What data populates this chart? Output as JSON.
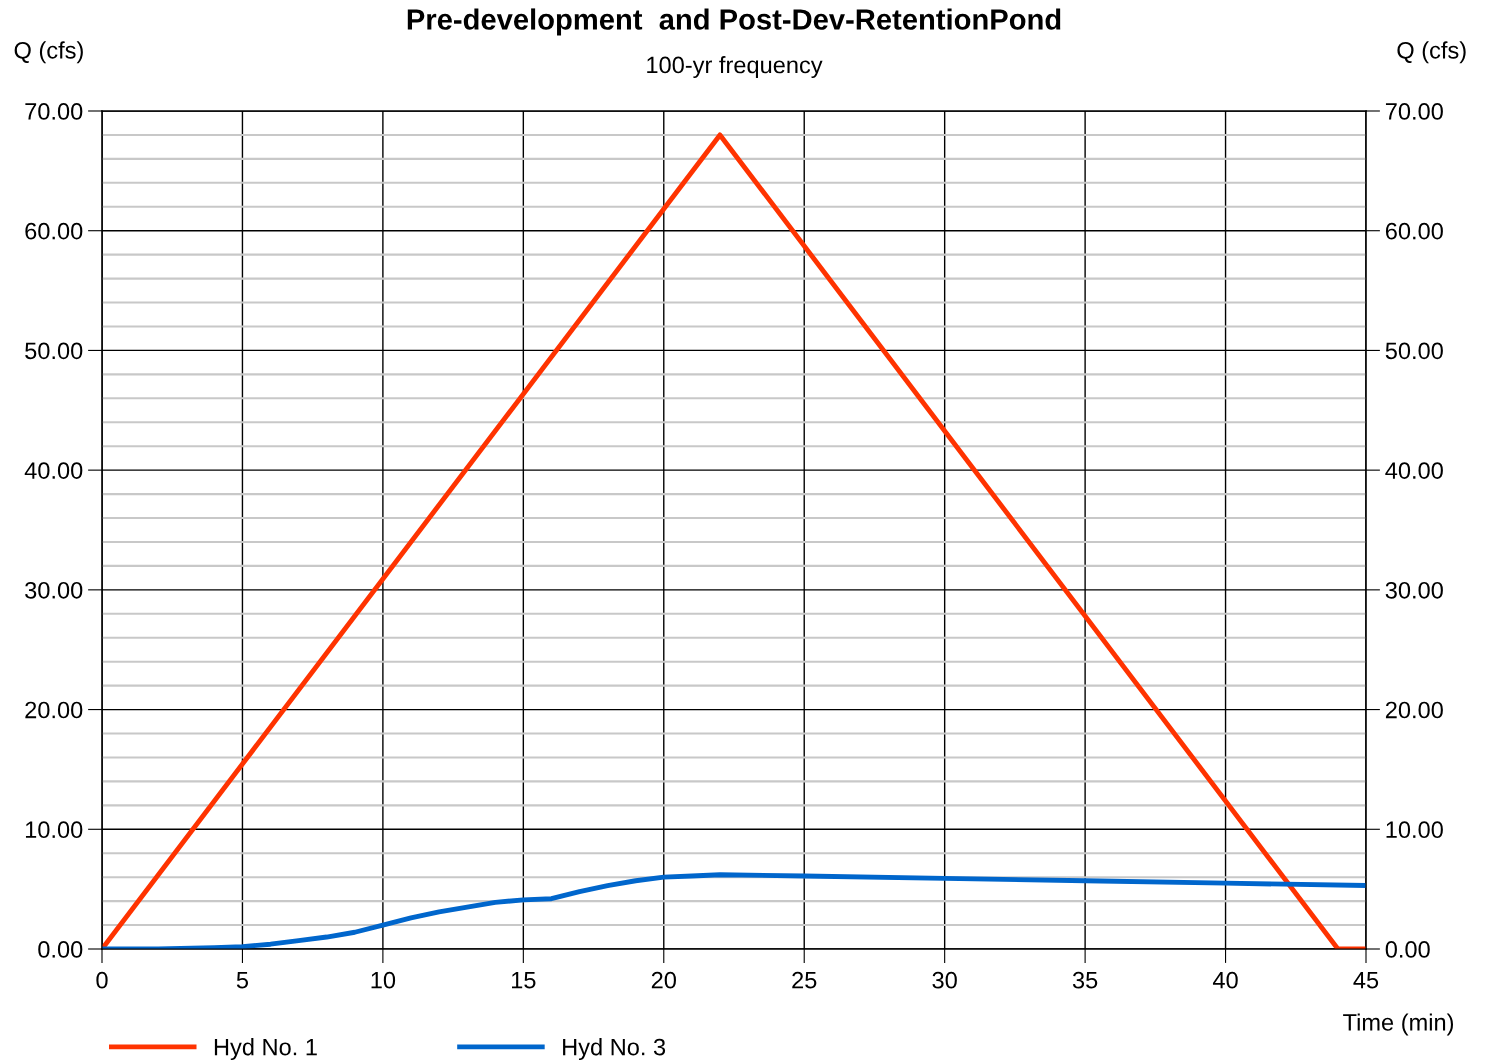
{
  "chart_data": {
    "type": "line",
    "title": "Pre-development  and Post-Dev-RetentionPond",
    "subtitle": "100-yr frequency",
    "xlabel": "Time (min)",
    "ylabel": "Q (cfs)",
    "y2label": "Q (cfs)",
    "series": [
      {
        "name": "Hyd No. 1",
        "color": "#ff3300",
        "x": [
          0,
          22,
          44,
          45
        ],
        "values": [
          0,
          68,
          0,
          0
        ]
      },
      {
        "name": "Hyd No. 3",
        "color": "#0066cc",
        "x": [
          0,
          2,
          4,
          5,
          6,
          7,
          8,
          9,
          10,
          11,
          12,
          13,
          14,
          15,
          16,
          17,
          18,
          19,
          20,
          21,
          22,
          25,
          30,
          35,
          40,
          45
        ],
        "values": [
          0,
          0,
          0.1,
          0.2,
          0.4,
          0.7,
          1.0,
          1.4,
          2.0,
          2.6,
          3.1,
          3.5,
          3.9,
          4.1,
          4.2,
          4.8,
          5.3,
          5.7,
          6.0,
          6.1,
          6.2,
          6.1,
          5.9,
          5.7,
          5.5,
          5.3
        ]
      }
    ],
    "xlim": [
      0,
      45
    ],
    "xticks": [
      0,
      5,
      10,
      15,
      20,
      25,
      30,
      35,
      40,
      45
    ],
    "ylim": [
      0,
      70
    ],
    "yticks": [
      {
        "value": 0,
        "label": "0.00"
      },
      {
        "value": 10,
        "label": "10.00"
      },
      {
        "value": 20,
        "label": "20.00"
      },
      {
        "value": 30,
        "label": "30.00"
      },
      {
        "value": 40,
        "label": "40.00"
      },
      {
        "value": 50,
        "label": "50.00"
      },
      {
        "value": 60,
        "label": "60.00"
      },
      {
        "value": 70,
        "label": "70.00"
      }
    ],
    "y2lim": [
      0,
      70
    ],
    "y2ticks": [
      {
        "value": 0,
        "label": "0.00"
      },
      {
        "value": 10,
        "label": "10.00"
      },
      {
        "value": 20,
        "label": "20.00"
      },
      {
        "value": 30,
        "label": "30.00"
      },
      {
        "value": 40,
        "label": "40.00"
      },
      {
        "value": 50,
        "label": "50.00"
      },
      {
        "value": 60,
        "label": "60.00"
      },
      {
        "value": 70,
        "label": "70.00"
      }
    ],
    "grid": true,
    "legend": "bottom",
    "marker": "none",
    "line_style": "solid"
  }
}
